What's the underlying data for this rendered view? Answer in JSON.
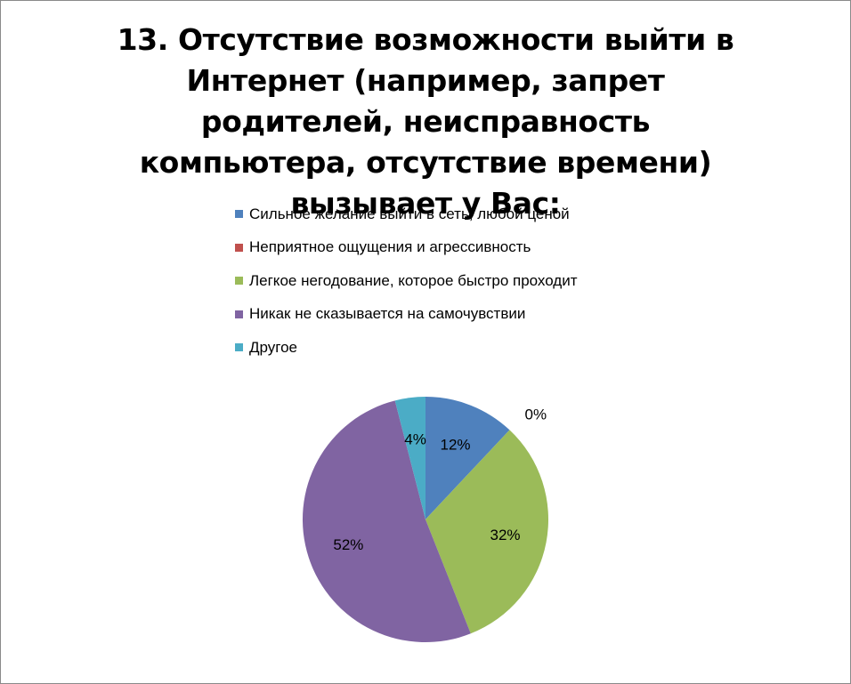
{
  "chart_data": {
    "type": "pie",
    "title": "13. Отсутствие возможности выйти в Интернет (например, запрет родителей, неисправность компьютера, отсутствие времени) вызывает у Вас:",
    "categories": [
      "Сильное желание выйти в сеть, любой ценой",
      "Неприятное ощущения и агрессивность",
      "Легкое негодование, которое быстро проходит",
      "Никак не сказывается на самочувствии",
      "Другое"
    ],
    "values": [
      12,
      0,
      32,
      52,
      4
    ],
    "labels": [
      "12%",
      "0%",
      "32%",
      "52%",
      "4%"
    ],
    "colors": [
      "#4f81bd",
      "#c0504d",
      "#9bbb59",
      "#8064a2",
      "#4bacc6"
    ],
    "legend": "top"
  }
}
